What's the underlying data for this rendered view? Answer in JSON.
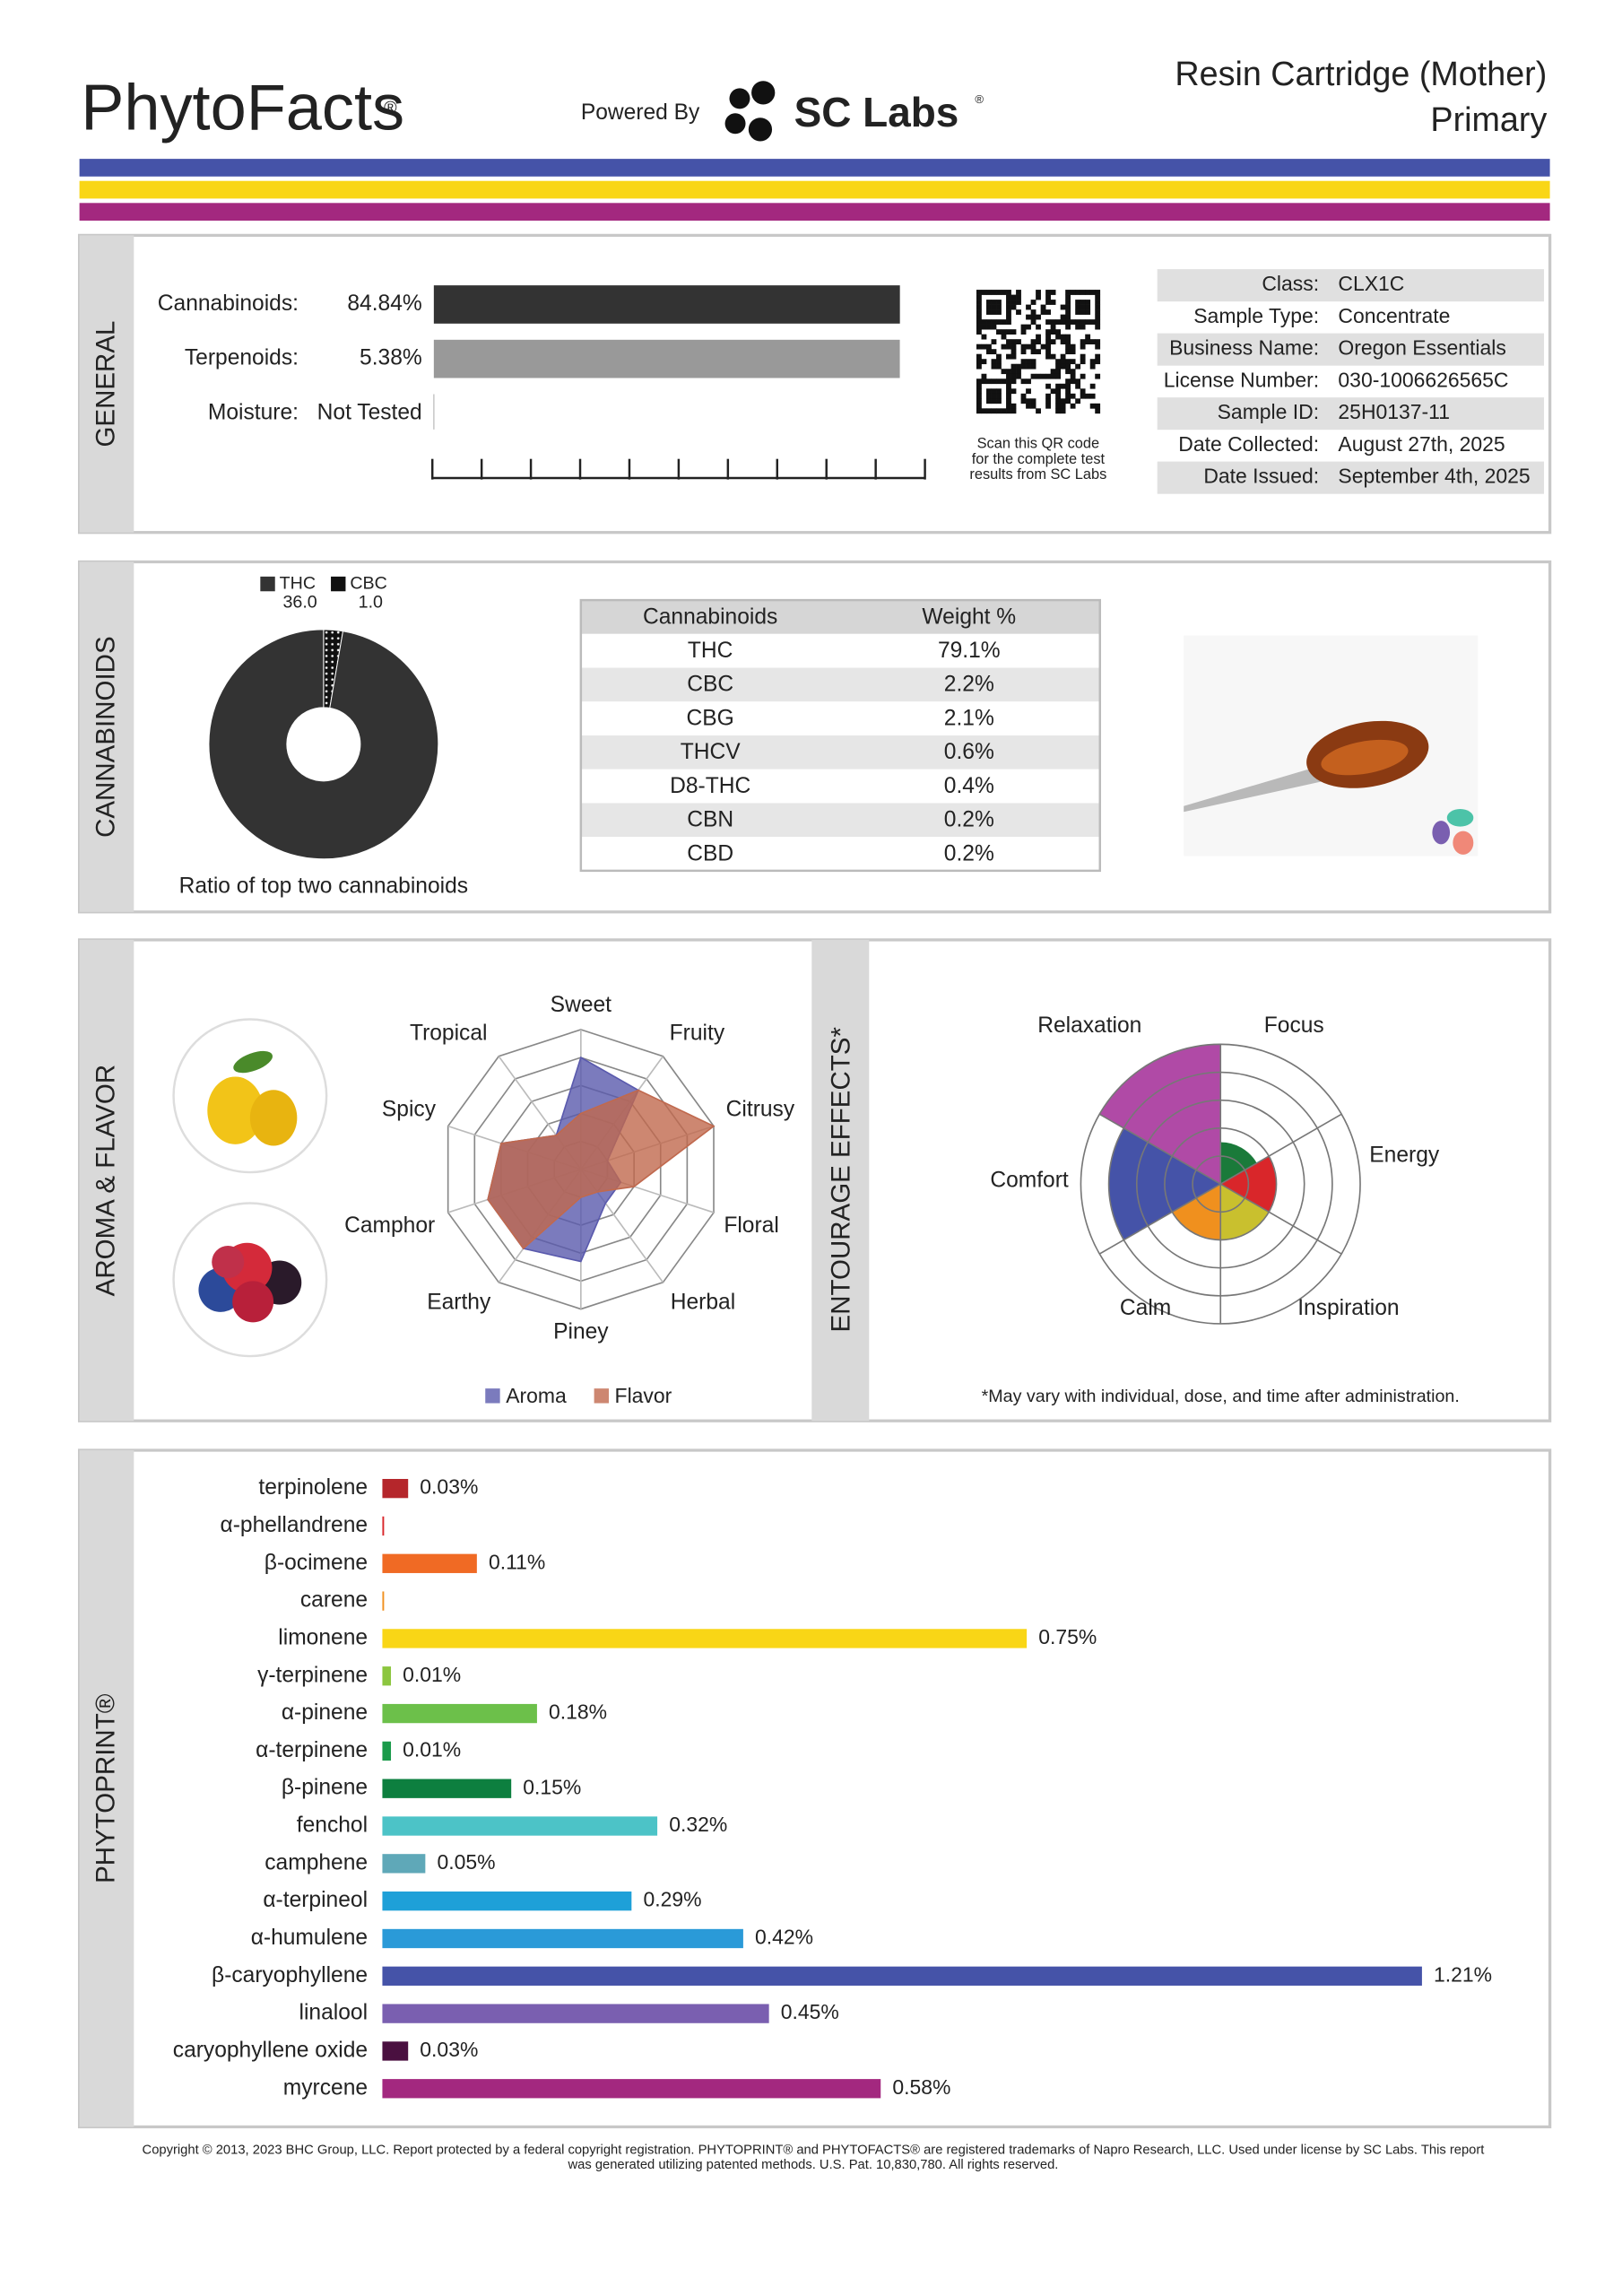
{
  "header": {
    "brand": "PhytoFacts",
    "brand_mark": "®",
    "powered_by": "Powered By",
    "lab": "SC Labs",
    "lab_mark": "®",
    "product": "Resin Cartridge (Mother)",
    "subtitle": "Primary"
  },
  "general": {
    "label": "GENERAL",
    "rows": [
      {
        "name": "Cannabinoids:",
        "value": 84.84,
        "value_label": "84.84%",
        "color": "#333333",
        "xlim": [
          0,
          89.4
        ]
      },
      {
        "name": "Terpenoids:",
        "value": 5.38,
        "value_label": "5.38%",
        "color": "#999999",
        "xlim": [
          0,
          5.67
        ]
      },
      {
        "name": "Moisture:",
        "value": null,
        "value_label": "Not Tested"
      }
    ],
    "qr_caption": [
      "Scan this QR code",
      "for the complete test",
      "results from SC Labs"
    ],
    "info": [
      [
        "Class:",
        "CLX1C"
      ],
      [
        "Sample Type:",
        "Concentrate"
      ],
      [
        "Business Name:",
        "Oregon Essentials"
      ],
      [
        "License Number:",
        "030-1006626565C"
      ],
      [
        "Sample ID:",
        "25H0137-11"
      ],
      [
        "Date Collected:",
        "August 27th, 2025"
      ],
      [
        "Date Issued:",
        "September 4th, 2025"
      ]
    ]
  },
  "cannabinoids": {
    "label": "CANNABINOIDS",
    "ratio_chart": {
      "type": "donut",
      "categories": [
        "THC",
        "CBC"
      ],
      "values": [
        36,
        1
      ],
      "value_labels": [
        "36.0",
        "1.0"
      ],
      "colors": [
        "#333333",
        "#111111"
      ],
      "caption": "Ratio of top two cannabinoids"
    },
    "table": {
      "header": [
        "Cannabinoids",
        "Weight %"
      ],
      "rows": [
        [
          "THC",
          "79.1%"
        ],
        [
          "CBC",
          "2.2%"
        ],
        [
          "CBG",
          "2.1%"
        ],
        [
          "THCV",
          "0.6%"
        ],
        [
          "D8-THC",
          "0.4%"
        ],
        [
          "CBN",
          "0.2%"
        ],
        [
          "CBD",
          "0.2%"
        ]
      ]
    }
  },
  "aroma": {
    "label": "AROMA & FLAVOR",
    "radar": {
      "type": "radar",
      "categories": [
        "Sweet",
        "Fruity",
        "Citrusy",
        "Floral",
        "Herbal",
        "Piney",
        "Earthy",
        "Camphor",
        "Spicy",
        "Tropical"
      ],
      "rlim": [
        0,
        5
      ],
      "rticks": [
        1,
        2,
        3,
        4,
        5
      ],
      "series": [
        {
          "name": "Aroma",
          "color": "#5a5aad",
          "values": [
            4,
            3.5,
            1,
            1.5,
            1.5,
            3.3,
            3.5,
            3.5,
            3,
            1.5
          ]
        },
        {
          "name": "Flavor",
          "color": "#c0694e",
          "values": [
            2,
            3.5,
            5,
            2,
            1,
            1,
            3.5,
            3.5,
            3,
            1.5
          ]
        }
      ]
    }
  },
  "effects": {
    "label": "ENTOURAGE EFFECTS*",
    "chart": {
      "type": "polar-area",
      "categories": [
        "Focus",
        "Energy",
        "Inspiration",
        "Calm",
        "Comfort",
        "Relaxation"
      ],
      "values": [
        1.5,
        2,
        2,
        2,
        4,
        5
      ],
      "colors": [
        "#1a7a3a",
        "#d9262a",
        "#c9c02e",
        "#f0901e",
        "#4553a8",
        "#b04aa6"
      ],
      "rlim": [
        0,
        5
      ],
      "rticks": [
        1,
        2,
        3,
        4,
        5
      ]
    },
    "note": "*May vary with individual, dose, and time after administration."
  },
  "phytoprint": {
    "label": "PHYTOPRINT®",
    "chart": {
      "type": "bar",
      "orientation": "horizontal",
      "xlim": [
        0,
        1.21
      ],
      "categories": [
        "terpinolene",
        "α-phellandrene",
        "β-ocimene",
        "carene",
        "limonene",
        "γ-terpinene",
        "α-pinene",
        "α-terpinene",
        "β-pinene",
        "fenchol",
        "camphene",
        "α-terpineol",
        "α-humulene",
        "β-caryophyllene",
        "linalool",
        "caryophyllene oxide",
        "myrcene"
      ],
      "values": [
        0.03,
        0.002,
        0.11,
        0.002,
        0.75,
        0.01,
        0.18,
        0.01,
        0.15,
        0.32,
        0.05,
        0.29,
        0.42,
        1.21,
        0.45,
        0.03,
        0.58
      ],
      "value_labels": [
        "0.03%",
        null,
        "0.11%",
        null,
        "0.75%",
        "0.01%",
        "0.18%",
        "0.01%",
        "0.15%",
        "0.32%",
        "0.05%",
        "0.29%",
        "0.42%",
        "1.21%",
        "0.45%",
        "0.03%",
        "0.58%"
      ],
      "colors": [
        "#b5262b",
        "#d9262a",
        "#f06a24",
        "#f0901e",
        "#f9d616",
        "#8cc63f",
        "#6cc04a",
        "#1a9a4a",
        "#0d7f3f",
        "#4cc3c7",
        "#5fa8b8",
        "#1ea0d8",
        "#2a9ad8",
        "#4553a8",
        "#7a5fb0",
        "#4a1040",
        "#a3287f"
      ]
    }
  },
  "footer": [
    "Copyright © 2013, 2023 BHC Group, LLC. Report protected by a federal copyright registration. PHYTOPRINT® and PHYTOFACTS® are registered trademarks of Napro Research, LLC. Used under license by SC Labs. This report",
    "was generated utilizing patented methods. U.S. Pat. 10,830,780. All rights reserved."
  ]
}
